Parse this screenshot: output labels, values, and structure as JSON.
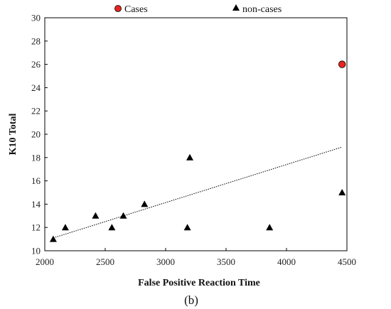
{
  "chart_data": {
    "type": "scatter",
    "xlabel": "False Positive Reaction Time",
    "ylabel": "K10 Total",
    "panel_label": "(b)",
    "xlim": [
      2000,
      4500
    ],
    "ylim": [
      10,
      30
    ],
    "x_ticks": [
      2000,
      2500,
      3000,
      3500,
      4000,
      4500
    ],
    "y_ticks": [
      10,
      12,
      14,
      16,
      18,
      20,
      22,
      24,
      26,
      28,
      30
    ],
    "x_tick_labels": [
      "2000",
      "2500",
      "3000",
      "3500",
      "4000",
      "4500"
    ],
    "y_tick_labels": [
      "10",
      "12",
      "14",
      "16",
      "18",
      "20",
      "22",
      "24",
      "26",
      "28",
      "30"
    ],
    "grid": false,
    "legend_position": "top",
    "series": [
      {
        "name": "Cases",
        "marker": "circle",
        "color": "#e8231f",
        "points": [
          [
            4460,
            26
          ]
        ]
      },
      {
        "name": "non-cases",
        "marker": "triangle",
        "color": "#000000",
        "points": [
          [
            2070,
            11
          ],
          [
            2170,
            12
          ],
          [
            2420,
            13
          ],
          [
            2555,
            12
          ],
          [
            2650,
            13
          ],
          [
            2825,
            14
          ],
          [
            3180,
            12
          ],
          [
            3200,
            18
          ],
          [
            3860,
            12
          ],
          [
            4460,
            15
          ]
        ]
      }
    ],
    "trendline": {
      "style": "dotted",
      "color": "#000000",
      "start": [
        2070,
        11.1
      ],
      "end": [
        4460,
        18.9
      ]
    }
  }
}
